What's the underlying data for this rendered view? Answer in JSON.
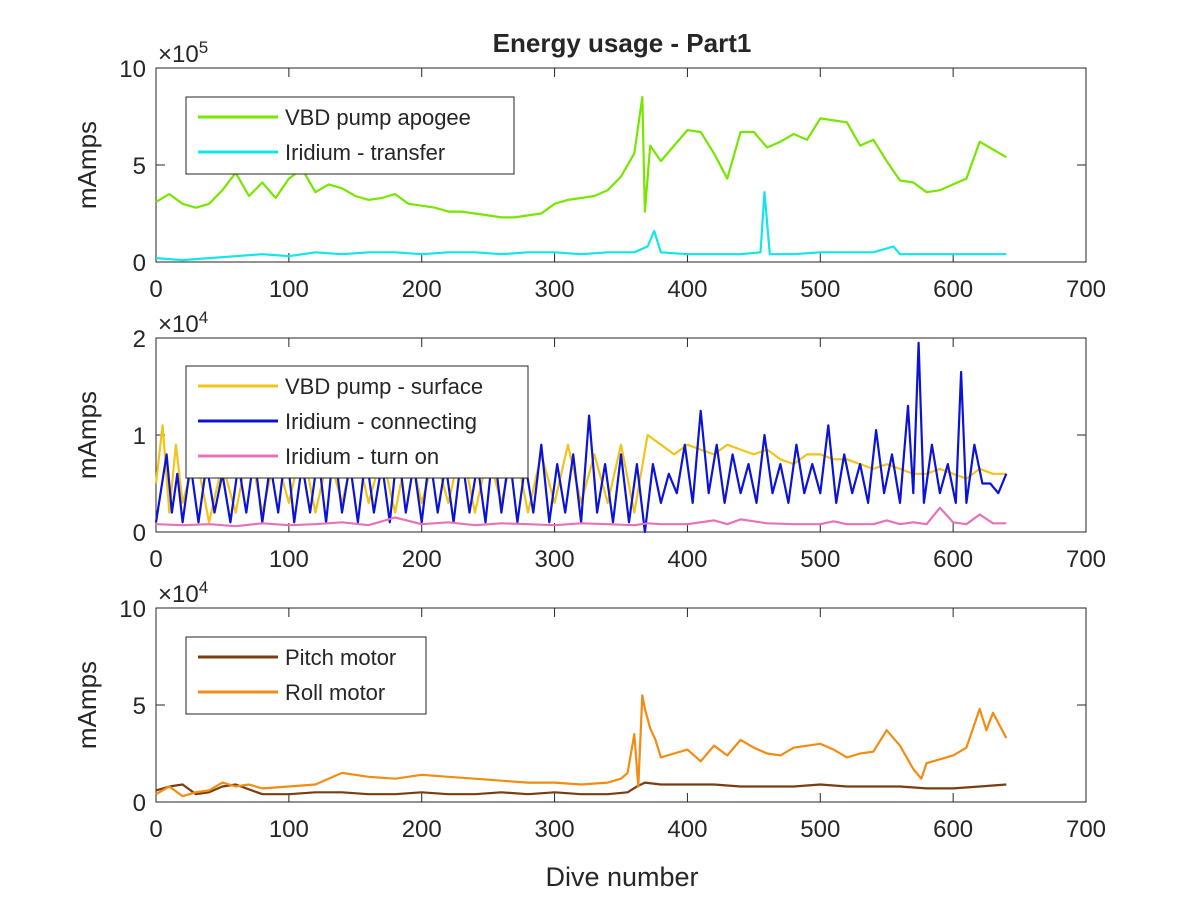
{
  "figure": {
    "title": "Energy usage - Part1",
    "xlabel": "Dive number"
  },
  "chart_data": [
    {
      "type": "line",
      "ylabel": "mAmps",
      "xlim": [
        0,
        700
      ],
      "ylim": [
        0,
        10
      ],
      "exponent_label": "×10",
      "exponent_power": "5",
      "xticks": [
        "0",
        "100",
        "200",
        "300",
        "400",
        "500",
        "600",
        "700"
      ],
      "yticks": [
        "0",
        "5",
        "10"
      ],
      "legend_position": "top-left",
      "series": [
        {
          "name": "VBD pump apogee",
          "color": "#77e600",
          "x": [
            0,
            10,
            20,
            30,
            40,
            50,
            60,
            70,
            80,
            90,
            100,
            110,
            120,
            130,
            140,
            150,
            160,
            170,
            180,
            190,
            200,
            210,
            220,
            230,
            240,
            250,
            260,
            270,
            280,
            290,
            300,
            310,
            320,
            330,
            340,
            350,
            360,
            366,
            368,
            372,
            380,
            390,
            400,
            410,
            420,
            430,
            440,
            450,
            460,
            470,
            480,
            490,
            500,
            510,
            520,
            530,
            540,
            550,
            560,
            570,
            580,
            590,
            600,
            610,
            620,
            630,
            640
          ],
          "y": [
            3.1,
            3.5,
            3.0,
            2.8,
            3.0,
            3.7,
            4.6,
            3.4,
            4.1,
            3.3,
            4.3,
            4.8,
            3.6,
            4.0,
            3.8,
            3.4,
            3.2,
            3.3,
            3.5,
            3.0,
            2.9,
            2.8,
            2.6,
            2.6,
            2.5,
            2.4,
            2.3,
            2.3,
            2.4,
            2.5,
            3.0,
            3.2,
            3.3,
            3.4,
            3.7,
            4.4,
            5.6,
            8.5,
            2.6,
            6.0,
            5.2,
            6.0,
            6.8,
            6.7,
            5.6,
            4.3,
            6.7,
            6.7,
            5.9,
            6.2,
            6.6,
            6.3,
            7.4,
            7.3,
            7.2,
            6.0,
            6.3,
            5.2,
            4.2,
            4.1,
            3.6,
            3.7,
            4.0,
            4.3,
            6.2,
            5.8,
            5.4
          ]
        },
        {
          "name": "Iridium - transfer",
          "color": "#12e6e6",
          "x": [
            0,
            20,
            40,
            60,
            80,
            100,
            120,
            140,
            160,
            180,
            200,
            220,
            240,
            260,
            280,
            300,
            320,
            340,
            360,
            370,
            375,
            380,
            400,
            420,
            440,
            455,
            458,
            462,
            480,
            500,
            520,
            540,
            555,
            560,
            580,
            600,
            620,
            640
          ],
          "y": [
            0.2,
            0.1,
            0.2,
            0.3,
            0.4,
            0.3,
            0.5,
            0.4,
            0.5,
            0.5,
            0.4,
            0.5,
            0.5,
            0.4,
            0.5,
            0.5,
            0.4,
            0.5,
            0.5,
            0.8,
            1.6,
            0.5,
            0.4,
            0.4,
            0.4,
            0.5,
            3.6,
            0.4,
            0.4,
            0.5,
            0.5,
            0.5,
            0.8,
            0.4,
            0.4,
            0.4,
            0.4,
            0.4
          ]
        }
      ]
    },
    {
      "type": "line",
      "ylabel": "mAmps",
      "xlim": [
        0,
        700
      ],
      "ylim": [
        0,
        2
      ],
      "exponent_label": "×10",
      "exponent_power": "4",
      "xticks": [
        "0",
        "100",
        "200",
        "300",
        "400",
        "500",
        "600",
        "700"
      ],
      "yticks": [
        "0",
        "1",
        "2"
      ],
      "legend_position": "top-left",
      "series": [
        {
          "name": "VBD pump - surface",
          "color": "#f2c417",
          "x": [
            0,
            5,
            10,
            15,
            20,
            30,
            40,
            50,
            60,
            70,
            80,
            90,
            100,
            110,
            120,
            130,
            140,
            150,
            160,
            170,
            180,
            190,
            200,
            210,
            220,
            230,
            240,
            250,
            260,
            270,
            280,
            290,
            300,
            310,
            320,
            330,
            340,
            350,
            360,
            370,
            380,
            390,
            400,
            410,
            420,
            430,
            440,
            450,
            460,
            470,
            480,
            490,
            500,
            510,
            520,
            530,
            540,
            550,
            560,
            570,
            580,
            590,
            600,
            610,
            620,
            630,
            640
          ],
          "y": [
            0.5,
            1.1,
            0.2,
            0.9,
            0.3,
            0.8,
            0.1,
            0.7,
            0.2,
            0.9,
            0.2,
            0.8,
            0.3,
            0.9,
            0.2,
            0.8,
            0.3,
            0.9,
            0.3,
            0.8,
            0.2,
            0.9,
            0.3,
            0.8,
            0.3,
            0.9,
            0.2,
            0.8,
            0.3,
            0.9,
            0.2,
            0.8,
            0.3,
            0.9,
            0.3,
            0.8,
            0.3,
            0.9,
            0.2,
            1.0,
            0.9,
            0.8,
            0.9,
            0.85,
            0.8,
            0.9,
            0.85,
            0.8,
            0.85,
            0.75,
            0.7,
            0.8,
            0.8,
            0.75,
            0.75,
            0.7,
            0.65,
            0.7,
            0.65,
            0.6,
            0.6,
            0.65,
            0.6,
            0.55,
            0.65,
            0.6,
            0.6
          ]
        },
        {
          "name": "Iridium - connecting",
          "color": "#0b14d6",
          "x": [
            0,
            8,
            12,
            16,
            20,
            26,
            32,
            38,
            44,
            50,
            56,
            62,
            68,
            74,
            80,
            86,
            92,
            98,
            104,
            110,
            116,
            122,
            128,
            134,
            140,
            146,
            152,
            158,
            164,
            170,
            176,
            182,
            188,
            194,
            200,
            206,
            212,
            218,
            224,
            230,
            236,
            242,
            248,
            254,
            260,
            266,
            272,
            278,
            284,
            290,
            296,
            302,
            308,
            314,
            320,
            326,
            332,
            338,
            344,
            350,
            356,
            362,
            368,
            374,
            380,
            386,
            392,
            398,
            404,
            410,
            416,
            422,
            428,
            434,
            440,
            446,
            452,
            458,
            464,
            470,
            476,
            482,
            488,
            494,
            500,
            506,
            512,
            518,
            524,
            530,
            536,
            542,
            548,
            554,
            560,
            566,
            570,
            574,
            578,
            584,
            590,
            596,
            602,
            606,
            610,
            616,
            622,
            628,
            634,
            640
          ],
          "y": [
            0.1,
            0.8,
            0.2,
            0.6,
            0.1,
            0.7,
            0.1,
            0.7,
            0.2,
            0.6,
            0.1,
            0.7,
            0.2,
            0.8,
            0.1,
            0.7,
            0.2,
            0.9,
            0.1,
            0.7,
            0.2,
            0.8,
            0.1,
            0.9,
            0.2,
            0.7,
            0.1,
            0.8,
            0.2,
            0.7,
            0.1,
            0.9,
            0.2,
            0.7,
            0.1,
            0.8,
            0.2,
            0.7,
            0.1,
            0.8,
            0.2,
            0.7,
            0.1,
            0.9,
            0.2,
            0.8,
            0.1,
            0.7,
            0.2,
            0.9,
            0.1,
            0.7,
            0.2,
            0.8,
            0.1,
            1.2,
            0.2,
            0.7,
            0.1,
            0.8,
            0.1,
            0.7,
            0.0,
            0.7,
            0.3,
            0.6,
            0.4,
            0.9,
            0.3,
            1.25,
            0.4,
            0.9,
            0.3,
            0.8,
            0.4,
            0.7,
            0.3,
            1.0,
            0.4,
            0.7,
            0.3,
            0.9,
            0.4,
            0.7,
            0.4,
            1.1,
            0.3,
            0.8,
            0.4,
            0.7,
            0.3,
            1.05,
            0.4,
            0.8,
            0.3,
            1.3,
            0.4,
            1.95,
            0.3,
            0.9,
            0.4,
            0.7,
            0.3,
            1.65,
            0.3,
            0.9,
            0.5,
            0.5,
            0.4,
            0.6
          ]
        },
        {
          "name": "Iridium - turn on",
          "color": "#e673b8",
          "x": [
            0,
            20,
            40,
            60,
            80,
            100,
            120,
            140,
            160,
            180,
            200,
            220,
            240,
            260,
            280,
            300,
            320,
            340,
            360,
            370,
            380,
            400,
            420,
            430,
            440,
            460,
            480,
            500,
            510,
            520,
            540,
            550,
            560,
            570,
            580,
            590,
            600,
            610,
            620,
            630,
            640
          ],
          "y": [
            0.08,
            0.07,
            0.08,
            0.06,
            0.09,
            0.07,
            0.08,
            0.1,
            0.07,
            0.15,
            0.08,
            0.1,
            0.07,
            0.09,
            0.08,
            0.07,
            0.09,
            0.08,
            0.07,
            0.09,
            0.08,
            0.08,
            0.12,
            0.08,
            0.13,
            0.09,
            0.08,
            0.08,
            0.11,
            0.08,
            0.08,
            0.12,
            0.08,
            0.1,
            0.08,
            0.25,
            0.1,
            0.08,
            0.18,
            0.09,
            0.09
          ]
        }
      ]
    },
    {
      "type": "line",
      "ylabel": "mAmps",
      "xlim": [
        0,
        700
      ],
      "ylim": [
        0,
        10
      ],
      "exponent_label": "×10",
      "exponent_power": "4",
      "xticks": [
        "0",
        "100",
        "200",
        "300",
        "400",
        "500",
        "600",
        "700"
      ],
      "yticks": [
        "0",
        "5",
        "10"
      ],
      "legend_position": "top-left",
      "series": [
        {
          "name": "Pitch motor",
          "color": "#7a3d0f",
          "x": [
            0,
            10,
            20,
            30,
            40,
            50,
            60,
            80,
            100,
            120,
            140,
            160,
            180,
            200,
            220,
            240,
            260,
            280,
            300,
            320,
            340,
            355,
            362,
            368,
            380,
            400,
            420,
            440,
            460,
            480,
            500,
            520,
            540,
            560,
            580,
            600,
            620,
            640
          ],
          "y": [
            0.6,
            0.8,
            0.9,
            0.4,
            0.5,
            0.8,
            0.9,
            0.4,
            0.4,
            0.5,
            0.5,
            0.4,
            0.4,
            0.5,
            0.4,
            0.4,
            0.5,
            0.4,
            0.5,
            0.4,
            0.4,
            0.5,
            0.8,
            1.0,
            0.9,
            0.9,
            0.9,
            0.8,
            0.8,
            0.8,
            0.9,
            0.8,
            0.8,
            0.8,
            0.7,
            0.7,
            0.8,
            0.9
          ]
        },
        {
          "name": "Roll motor",
          "color": "#f28c12",
          "x": [
            0,
            10,
            20,
            30,
            40,
            50,
            60,
            70,
            80,
            100,
            120,
            140,
            160,
            180,
            200,
            220,
            240,
            260,
            280,
            300,
            320,
            340,
            350,
            355,
            360,
            363,
            366,
            368,
            372,
            376,
            380,
            390,
            400,
            410,
            420,
            430,
            440,
            450,
            460,
            470,
            480,
            490,
            500,
            510,
            520,
            530,
            540,
            550,
            560,
            570,
            576,
            580,
            590,
            600,
            610,
            620,
            625,
            630,
            640
          ],
          "y": [
            0.4,
            0.8,
            0.3,
            0.5,
            0.6,
            1.0,
            0.8,
            0.9,
            0.7,
            0.8,
            0.9,
            1.5,
            1.3,
            1.2,
            1.4,
            1.3,
            1.2,
            1.1,
            1.0,
            1.0,
            0.9,
            1.0,
            1.2,
            1.5,
            3.5,
            0.8,
            5.5,
            4.8,
            3.8,
            3.2,
            2.3,
            2.5,
            2.7,
            2.1,
            2.9,
            2.4,
            3.2,
            2.8,
            2.5,
            2.4,
            2.8,
            2.9,
            3.0,
            2.7,
            2.3,
            2.5,
            2.6,
            3.7,
            2.9,
            1.7,
            1.2,
            2.0,
            2.2,
            2.4,
            2.8,
            4.8,
            3.7,
            4.6,
            3.3
          ]
        }
      ]
    }
  ]
}
